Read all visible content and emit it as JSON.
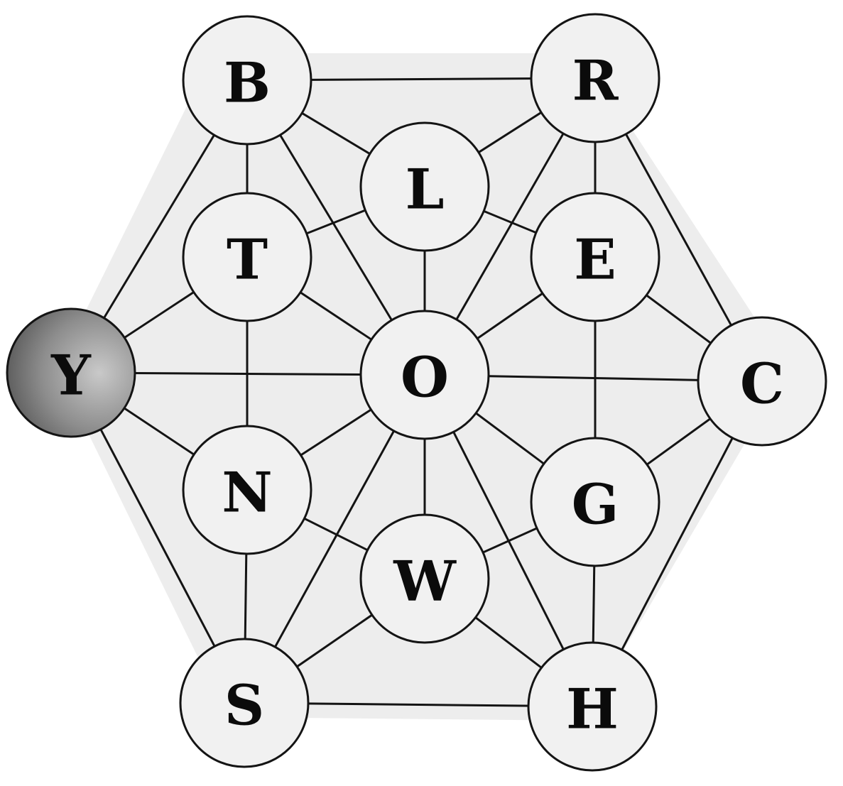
{
  "puzzle": {
    "nodes": [
      {
        "id": "B",
        "label": "B",
        "highlighted": false
      },
      {
        "id": "R",
        "label": "R",
        "highlighted": false
      },
      {
        "id": "L",
        "label": "L",
        "highlighted": false
      },
      {
        "id": "T",
        "label": "T",
        "highlighted": false
      },
      {
        "id": "E",
        "label": "E",
        "highlighted": false
      },
      {
        "id": "Y",
        "label": "Y",
        "highlighted": true
      },
      {
        "id": "O",
        "label": "O",
        "highlighted": false
      },
      {
        "id": "C",
        "label": "C",
        "highlighted": false
      },
      {
        "id": "N",
        "label": "N",
        "highlighted": false
      },
      {
        "id": "G",
        "label": "G",
        "highlighted": false
      },
      {
        "id": "W",
        "label": "W",
        "highlighted": false
      },
      {
        "id": "S",
        "label": "S",
        "highlighted": false
      },
      {
        "id": "H",
        "label": "H",
        "highlighted": false
      }
    ],
    "edges": [
      [
        "B",
        "R"
      ],
      [
        "B",
        "T"
      ],
      [
        "B",
        "L"
      ],
      [
        "B",
        "O"
      ],
      [
        "B",
        "Y"
      ],
      [
        "R",
        "L"
      ],
      [
        "R",
        "E"
      ],
      [
        "R",
        "O"
      ],
      [
        "R",
        "C"
      ],
      [
        "L",
        "T"
      ],
      [
        "L",
        "O"
      ],
      [
        "L",
        "E"
      ],
      [
        "T",
        "Y"
      ],
      [
        "T",
        "O"
      ],
      [
        "T",
        "N"
      ],
      [
        "E",
        "O"
      ],
      [
        "E",
        "C"
      ],
      [
        "E",
        "G"
      ],
      [
        "Y",
        "O"
      ],
      [
        "Y",
        "N"
      ],
      [
        "Y",
        "S"
      ],
      [
        "O",
        "C"
      ],
      [
        "O",
        "N"
      ],
      [
        "O",
        "G"
      ],
      [
        "O",
        "W"
      ],
      [
        "O",
        "S"
      ],
      [
        "O",
        "H"
      ],
      [
        "C",
        "G"
      ],
      [
        "C",
        "H"
      ],
      [
        "N",
        "W"
      ],
      [
        "N",
        "S"
      ],
      [
        "G",
        "W"
      ],
      [
        "G",
        "H"
      ],
      [
        "W",
        "S"
      ],
      [
        "W",
        "H"
      ],
      [
        "S",
        "H"
      ]
    ],
    "colors": {
      "node_fill": "#f1f1f1",
      "highlight_fill": "#8a8a8a",
      "stroke": "#141414"
    }
  }
}
